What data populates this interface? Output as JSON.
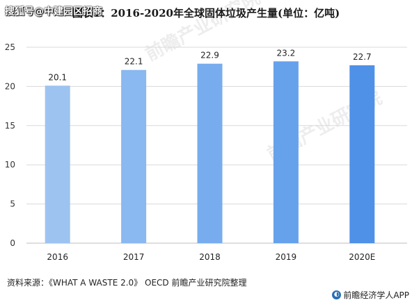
{
  "header": {
    "overlay_tag": "搜狐号@中建园区招商",
    "title": "图表1：2016-2020年全球固体垃圾产生量(单位：亿吨)"
  },
  "watermark": {
    "text": "前瞻产业研究院"
  },
  "chart_data": {
    "type": "bar",
    "title": "图表1：2016-2020年全球固体垃圾产生量(单位：亿吨)",
    "categories": [
      "2016",
      "2017",
      "2018",
      "2019",
      "2020E"
    ],
    "series": [
      {
        "values": [
          20.1,
          22.1,
          22.9,
          23.2,
          22.7
        ]
      }
    ],
    "data_labels": [
      "20.1",
      "22.1",
      "22.9",
      "23.2",
      "22.7"
    ],
    "yticks": [
      "0",
      "5",
      "10",
      "15",
      "20",
      "25"
    ],
    "ylim": [
      0,
      25
    ],
    "grid": true,
    "bar_colors": [
      "#9dc3f1",
      "#8ab8f0",
      "#77acee",
      "#66a1ec",
      "#4f91e6"
    ]
  },
  "footer": {
    "source": "资料来源：《WHAT A WASTE 2.0》 OECD 前瞻产业研究院整理",
    "brand": "前瞻经济学人APP",
    "brand_icon": "qianzhan-logo-icon"
  }
}
